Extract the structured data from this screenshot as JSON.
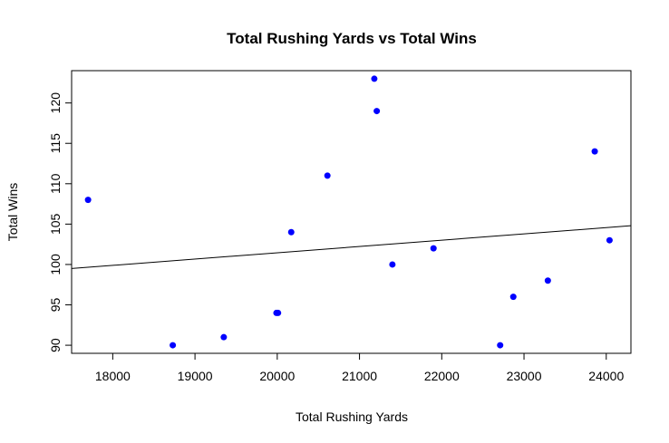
{
  "chart_data": {
    "type": "scatter",
    "title": "Total Rushing Yards vs Total Wins",
    "xlabel": "Total Rushing Yards",
    "ylabel": "Total Wins",
    "xlim": [
      17500,
      24300
    ],
    "ylim": [
      89,
      124
    ],
    "x_ticks": [
      18000,
      19000,
      20000,
      21000,
      22000,
      23000,
      24000
    ],
    "y_ticks": [
      90,
      95,
      100,
      105,
      110,
      115,
      120
    ],
    "point_color": "#0000ff",
    "line_color": "#000000",
    "grid": false,
    "points": [
      {
        "x": 17700,
        "y": 108
      },
      {
        "x": 18730,
        "y": 90
      },
      {
        "x": 19350,
        "y": 91
      },
      {
        "x": 19990,
        "y": 94
      },
      {
        "x": 20010,
        "y": 94
      },
      {
        "x": 20170,
        "y": 104
      },
      {
        "x": 20610,
        "y": 111
      },
      {
        "x": 21180,
        "y": 123
      },
      {
        "x": 21210,
        "y": 119
      },
      {
        "x": 21400,
        "y": 100
      },
      {
        "x": 21900,
        "y": 102
      },
      {
        "x": 22710,
        "y": 90
      },
      {
        "x": 22870,
        "y": 96
      },
      {
        "x": 23290,
        "y": 98
      },
      {
        "x": 23860,
        "y": 114
      },
      {
        "x": 24040,
        "y": 103
      }
    ],
    "regression_line": {
      "x": [
        17500,
        24300
      ],
      "y": [
        99.5,
        104.8
      ]
    }
  }
}
